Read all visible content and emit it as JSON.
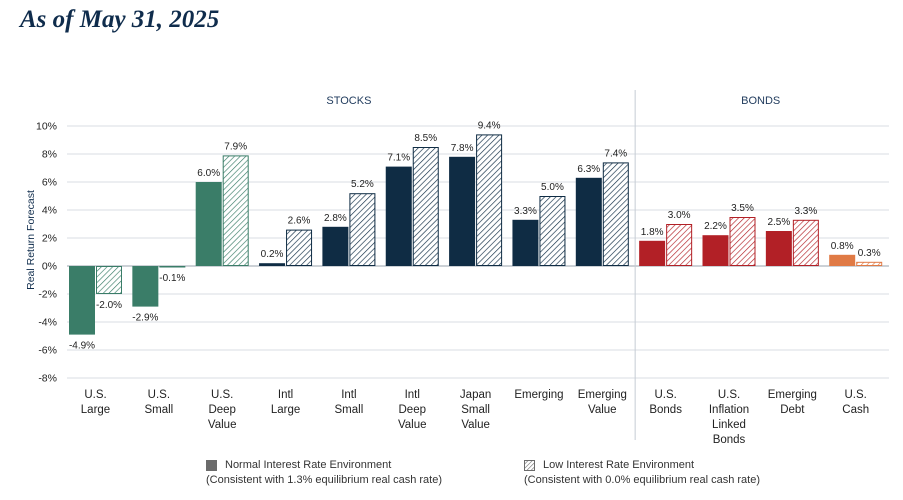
{
  "heading": "As of May 31, 2025",
  "colors": {
    "stocks_green": "#3a7d68",
    "stocks_navy": "#0f2c44",
    "bonds_red": "#b22026",
    "cash_orange": "#e07a45",
    "legend_gray": "#6b6b6b"
  },
  "chart_data": {
    "type": "bar",
    "ylabel": "Real Return Forecast",
    "ylim": [
      -8,
      10
    ],
    "yticks": [
      10,
      8,
      6,
      4,
      2,
      0,
      -2,
      -4,
      -6,
      -8
    ],
    "ytick_labels": [
      "10%",
      "8%",
      "6%",
      "4%",
      "2%",
      "0%",
      "-2%",
      "-4%",
      "-6%",
      "-8%"
    ],
    "grid": true,
    "groups": [
      {
        "label": "STOCKS",
        "categories": [
          0,
          1,
          2,
          3,
          4,
          5,
          6,
          7,
          8
        ]
      },
      {
        "label": "BONDS",
        "categories": [
          9,
          10,
          11,
          12
        ]
      }
    ],
    "categories": [
      [
        "U.S.",
        "Large"
      ],
      [
        "U.S.",
        "Small"
      ],
      [
        "U.S.",
        "Deep",
        "Value"
      ],
      [
        "Intl",
        "Large"
      ],
      [
        "Intl",
        "Small"
      ],
      [
        "Intl",
        "Deep",
        "Value"
      ],
      [
        "Japan",
        "Small",
        "Value"
      ],
      [
        "Emerging"
      ],
      [
        "Emerging",
        "Value"
      ],
      [
        "U.S.",
        "Bonds"
      ],
      [
        "U.S.",
        "Inflation",
        "Linked",
        "Bonds"
      ],
      [
        "Emerging",
        "Debt"
      ],
      [
        "U.S.",
        "Cash"
      ]
    ],
    "category_colors": [
      "#3a7d68",
      "#3a7d68",
      "#3a7d68",
      "#0f2c44",
      "#0f2c44",
      "#0f2c44",
      "#0f2c44",
      "#0f2c44",
      "#0f2c44",
      "#b22026",
      "#b22026",
      "#b22026",
      "#e07a45"
    ],
    "series": [
      {
        "name": "Normal Interest Rate Environment",
        "style": "solid",
        "values": [
          -4.9,
          -2.9,
          6.0,
          0.2,
          2.8,
          7.1,
          7.8,
          3.3,
          6.3,
          1.8,
          2.2,
          2.5,
          0.8
        ],
        "labels": [
          "-4.9%",
          "-2.9%",
          "6.0%",
          "0.2%",
          "2.8%",
          "7.1%",
          "7.8%",
          "3.3%",
          "6.3%",
          "1.8%",
          "2.2%",
          "2.5%",
          "0.8%"
        ]
      },
      {
        "name": "Low Interest Rate Environment",
        "style": "hatched",
        "values": [
          -2.0,
          -0.1,
          7.9,
          2.6,
          5.2,
          8.5,
          9.4,
          5.0,
          7.4,
          3.0,
          3.5,
          3.3,
          0.3
        ],
        "labels": [
          "-2.0%",
          "-0.1%",
          "7.9%",
          "2.6%",
          "5.2%",
          "8.5%",
          "9.4%",
          "5.0%",
          "7.4%",
          "3.0%",
          "3.5%",
          "3.3%",
          "0.3%"
        ]
      }
    ],
    "legend": [
      {
        "line1": "Normal Interest Rate Environment",
        "line2": "(Consistent with 1.3% equilibrium real cash rate)"
      },
      {
        "line1": "Low Interest Rate Environment",
        "line2": "(Consistent with 0.0% equilibrium real cash rate)"
      }
    ],
    "legend_position": "bottom"
  }
}
